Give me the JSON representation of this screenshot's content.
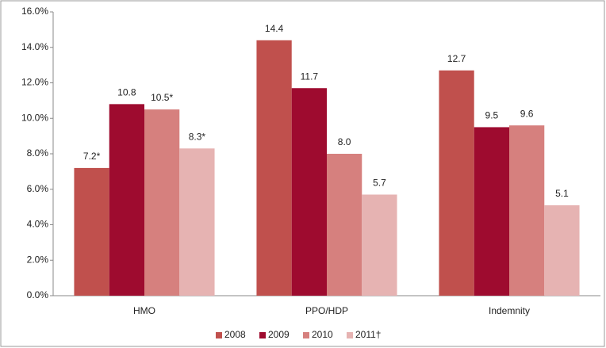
{
  "chart_data": {
    "type": "bar",
    "categories": [
      "HMO",
      "PPO/HDP",
      "Indemnity"
    ],
    "series": [
      {
        "name": "2008",
        "color": "#c0504d",
        "values": [
          7.2,
          14.4,
          12.7
        ],
        "value_labels": [
          "7.2*",
          "14.4",
          "12.7"
        ]
      },
      {
        "name": "2009",
        "color": "#9e0b2f",
        "values": [
          10.8,
          11.7,
          9.5
        ]
      },
      {
        "name": "2010",
        "color": "#d6807e",
        "values": [
          10.5,
          8.0,
          9.6
        ],
        "value_labels": [
          "10.5*",
          "8.0",
          "9.6"
        ]
      },
      {
        "name": "2011†",
        "color": "#e6b3b2",
        "values": [
          8.3,
          5.7,
          5.1
        ],
        "value_labels": [
          "8.3*",
          "5.7",
          "5.1"
        ]
      }
    ],
    "ylim": [
      0,
      16
    ],
    "yticks": [
      {
        "value": 0,
        "label": "0.0%"
      },
      {
        "value": 2,
        "label": "2.0%"
      },
      {
        "value": 4,
        "label": "4.0%"
      },
      {
        "value": 6,
        "label": "6.0%"
      },
      {
        "value": 8,
        "label": "8.0%"
      },
      {
        "value": 10,
        "label": "10.0%"
      },
      {
        "value": 12,
        "label": "12.0%"
      },
      {
        "value": 14,
        "label": "14.0%"
      },
      {
        "value": 16,
        "label": "16.0%"
      }
    ],
    "grid": false,
    "legend": "bottom"
  }
}
